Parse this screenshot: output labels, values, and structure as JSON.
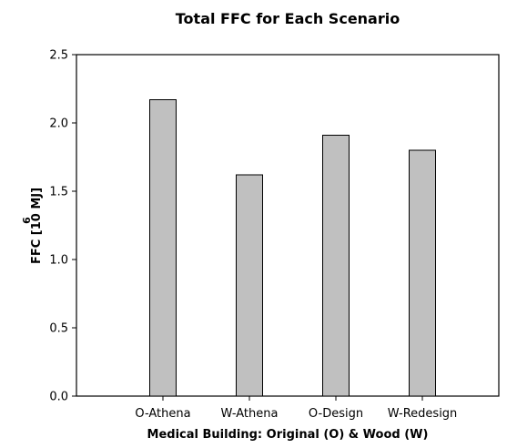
{
  "chart_data": {
    "type": "bar",
    "title": "Total FFC for Each Scenario",
    "xlabel": "Medical Building: Original (O) & Wood (W)",
    "ylabel": "FFC [10 MJ]",
    "ylabel_exponent": "6",
    "categories": [
      "O-Athena",
      "W-Athena",
      "O-Design",
      "W-Redesign"
    ],
    "values": [
      2.17,
      1.62,
      1.91,
      1.8
    ],
    "ylim": [
      0,
      2.5
    ],
    "yticks": [
      "0.0",
      "0.5",
      "1.0",
      "1.5",
      "2.0",
      "2.5"
    ],
    "grid": false,
    "bar_color": "#c0c0c0",
    "bar_edge_color": "#000000"
  }
}
